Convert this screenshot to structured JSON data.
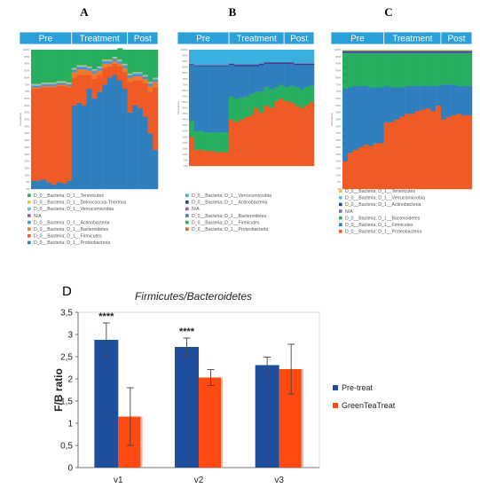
{
  "chart_data": [
    {
      "type": "bar",
      "panel_label": "A",
      "stacked": true,
      "groups": [
        "Pre",
        "Treatment",
        "Post"
      ],
      "group_sizes": [
        8,
        11,
        6
      ],
      "ylabel": "Abundance",
      "yticks": [
        "0%",
        "5%",
        "10%",
        "15%",
        "20%",
        "25%",
        "30%",
        "35%",
        "40%",
        "45%",
        "50%",
        "55%",
        "60%",
        "65%",
        "70%",
        "75%",
        "80%",
        "85%",
        "90%",
        "95%",
        "100%"
      ],
      "series": [
        {
          "name": "D_0__Bacteria; D_1__Proteobacteria",
          "color": "#2f7fbf",
          "values": [
            6,
            6,
            7,
            5,
            3,
            5,
            4,
            6,
            60,
            62,
            60,
            72,
            65,
            70,
            75,
            80,
            82,
            78,
            72,
            55,
            60,
            58,
            52,
            40,
            28
          ]
        },
        {
          "name": "D_0__Bacteria; D_1__Firmicutes",
          "color": "#f05a24",
          "values": [
            66,
            66,
            66,
            68,
            70,
            69,
            70,
            67,
            20,
            20,
            22,
            10,
            14,
            12,
            12,
            8,
            8,
            10,
            12,
            22,
            18,
            20,
            24,
            30,
            45
          ]
        },
        {
          "name": "D_0__Bacteria; D_1__Bacteroidetes",
          "color": "#f07a30",
          "values": [
            1,
            1,
            1,
            1,
            1,
            1,
            1,
            1,
            4,
            4,
            4,
            3,
            4,
            3,
            3,
            2,
            2,
            2,
            3,
            3,
            3,
            3,
            3,
            4,
            4
          ]
        },
        {
          "name": "D_0__Bacteria; D_1__Actinobacteria",
          "color": "#3a9ad9",
          "values": [
            0.5,
            0.5,
            0.5,
            0.5,
            0.5,
            0.5,
            0.5,
            0.5,
            1,
            1,
            1,
            1,
            1,
            1,
            1,
            1,
            1,
            1,
            1,
            1,
            1,
            1,
            1,
            1,
            1
          ]
        },
        {
          "name": "N/A",
          "color": "#8a63a8",
          "values": [
            0.5,
            0.5,
            0.5,
            0.5,
            0.5,
            0.5,
            0.5,
            0.5,
            0.5,
            0.5,
            0.5,
            0.5,
            0.5,
            0.5,
            0.5,
            0.5,
            0.5,
            0.5,
            0.5,
            0.5,
            0.5,
            0.5,
            0.5,
            0.5,
            0.5
          ]
        },
        {
          "name": "D_0__Bacteria; D_1__Verrucomicrobia",
          "color": "#5bc0de",
          "values": [
            1,
            1,
            1,
            1,
            1,
            1,
            1,
            1,
            1,
            1,
            1,
            1,
            1,
            1,
            1,
            1,
            1,
            1,
            1,
            1,
            1,
            1,
            1,
            1,
            1
          ]
        },
        {
          "name": "D_0__Bacteria; D_1__Deinococcus-Thermus",
          "color": "#f0c040",
          "values": [
            0.5,
            0.5,
            0.5,
            0.5,
            0.5,
            0.5,
            0.5,
            0.5,
            0.5,
            0.5,
            0.5,
            0.5,
            0.5,
            0.5,
            0.5,
            0.5,
            0.5,
            0.5,
            0.5,
            0.5,
            0.5,
            0.5,
            0.5,
            0.5,
            0.5
          ]
        },
        {
          "name": "D_0__Bacteria; D_1__Tenericutes",
          "color": "#27ae60",
          "values": [
            24.5,
            24.5,
            23.5,
            23.5,
            23.5,
            22.5,
            22.5,
            23.5,
            13,
            11,
            11,
            12,
            14,
            12,
            7,
            7,
            5,
            8,
            10,
            17,
            16,
            16,
            18,
            23,
            20
          ]
        }
      ],
      "legend_order": [
        "D_0__Bacteria; D_1__Tenericutes",
        "D_0__Bacteria; D_1__Deinococcus-Thermus",
        "D_0__Bacteria; D_1__Verrucomicrobia",
        "N/A",
        "D_0__Bacteria; D_1__Actinobacteria",
        "D_0__Bacteria; D_1__Bacteroidetes",
        "D_0__Bacteria; D_1__Firmicutes",
        "D_0__Bacteria; D_1__Proteobacteria"
      ]
    },
    {
      "type": "bar",
      "panel_label": "B",
      "stacked": true,
      "groups": [
        "Pre",
        "Treatment",
        "Post"
      ],
      "group_sizes": [
        8,
        11,
        6
      ],
      "ylabel": "Abundance",
      "yticks": [
        "0%",
        "5%",
        "10%",
        "15%",
        "20%",
        "25%",
        "30%",
        "35%",
        "40%",
        "45%",
        "50%",
        "55%",
        "60%",
        "65%",
        "70%",
        "75%",
        "80%",
        "85%",
        "90%",
        "95%",
        "100%"
      ],
      "series": [
        {
          "name": "D_0__Bacteria; D_1__Proteobacteria",
          "color": "#f05a24",
          "values": [
            25,
            14,
            14,
            13,
            13,
            12,
            12,
            12,
            40,
            38,
            40,
            42,
            44,
            50,
            46,
            52,
            50,
            56,
            58,
            56,
            55,
            52,
            50,
            52,
            55
          ]
        },
        {
          "name": "D_0__Bacteria; D_1__Firmicutes",
          "color": "#27ae60",
          "values": [
            14,
            16,
            16,
            16,
            16,
            17,
            17,
            17,
            20,
            20,
            19,
            18,
            18,
            14,
            18,
            16,
            16,
            12,
            12,
            12,
            14,
            16,
            16,
            16,
            14
          ]
        },
        {
          "name": "D_0__Bacteria; D_1__Bacteroidetes",
          "color": "#2f7fbf",
          "values": [
            48,
            56,
            56,
            57,
            57,
            57,
            57,
            57,
            27,
            28,
            27,
            26,
            24,
            22,
            23,
            20,
            22,
            20,
            18,
            20,
            19,
            19,
            21,
            19,
            18
          ]
        },
        {
          "name": "D_0__Bacteria; D_1__Actinobacteria",
          "color": "#2c3e8f",
          "values": [
            0.5,
            0.5,
            0.5,
            0.5,
            0.5,
            0.5,
            0.5,
            0.5,
            1,
            1,
            1,
            1,
            1,
            1,
            1,
            1,
            1,
            1,
            1,
            1,
            1,
            1,
            1,
            1,
            1
          ]
        },
        {
          "name": "N/A",
          "color": "#8a63a8",
          "values": [
            0.5,
            0.5,
            0.5,
            0.5,
            0.5,
            0.5,
            0.5,
            0.5,
            0.5,
            0.5,
            0.5,
            0.5,
            0.5,
            0.5,
            0.5,
            0.5,
            0.5,
            0.5,
            0.5,
            0.5,
            0.5,
            0.5,
            0.5,
            0.5,
            0.5
          ]
        },
        {
          "name": "D_0__Bacteria; D_1__Verrucomicrobia",
          "color": "#3ab0e0",
          "values": [
            12,
            13,
            13,
            13,
            13,
            13,
            13,
            13,
            11.5,
            12.5,
            12.5,
            12.5,
            12.5,
            12.5,
            11.5,
            10.5,
            10.5,
            10.5,
            10.5,
            10.5,
            10.5,
            11.5,
            11.5,
            11.5,
            11.5
          ]
        }
      ],
      "legend_order": [
        "D_0__Bacteria; D_1__Verrucomicrobia",
        "D_0__Bacteria; D_1__Actinobacteria",
        "N/A",
        "D_0__Bacteria; D_1__Bacteroidetes",
        "D_0__Bacteria; D_1__Firmicutes",
        "D_0__Bacteria; D_1__Proteobacteria"
      ]
    },
    {
      "type": "bar",
      "panel_label": "C",
      "stacked": true,
      "groups": [
        "Pre",
        "Treatment",
        "Post"
      ],
      "group_sizes": [
        8,
        11,
        6
      ],
      "ylabel": "Abundance",
      "yticks": [
        "0%",
        "5%",
        "10%",
        "15%",
        "20%",
        "25%",
        "30%",
        "35%",
        "40%",
        "45%",
        "50%",
        "55%",
        "60%",
        "65%",
        "70%",
        "75%",
        "80%",
        "85%",
        "90%",
        "95%",
        "100%"
      ],
      "series": [
        {
          "name": "D_0__Bacteria; D_1__Proteobacteria",
          "color": "#f05a24",
          "values": [
            20,
            26,
            28,
            30,
            32,
            31,
            33,
            33,
            48,
            48,
            50,
            52,
            54,
            54,
            56,
            57,
            58,
            56,
            60,
            50,
            52,
            53,
            54,
            53,
            53
          ]
        },
        {
          "name": "D_0__Bacteria; D_1__Firmicutes",
          "color": "#2f7fbf",
          "values": [
            52,
            47,
            46,
            44,
            42,
            42,
            40,
            40,
            26,
            25,
            23,
            21,
            20,
            20,
            18,
            17,
            16,
            18,
            14,
            25,
            23,
            22,
            20,
            21,
            21
          ]
        },
        {
          "name": "D_0__Bacteria; D_1__Bacteroidetes",
          "color": "#27ae60",
          "values": [
            25.5,
            24.5,
            23.5,
            23.5,
            23.5,
            24.5,
            24.5,
            24.5,
            23.5,
            24.5,
            24.5,
            24.5,
            23.5,
            23.5,
            23.5,
            23.5,
            23.5,
            23.5,
            23.5,
            22.5,
            22.5,
            22.5,
            23.5,
            23.5,
            23.5
          ]
        },
        {
          "name": "N/A",
          "color": "#8a63a8",
          "values": [
            0.5,
            0.5,
            0.5,
            0.5,
            0.5,
            0.5,
            0.5,
            0.5,
            0.5,
            0.5,
            0.5,
            0.5,
            0.5,
            0.5,
            0.5,
            0.5,
            0.5,
            0.5,
            0.5,
            0.5,
            0.5,
            0.5,
            0.5,
            0.5,
            0.5
          ]
        },
        {
          "name": "D_0__Bacteria; D_1__Actinobacteria",
          "color": "#2c3e8f",
          "values": [
            1,
            1,
            1,
            1,
            1,
            1,
            1,
            1,
            1,
            1,
            1,
            1,
            1,
            1,
            1,
            1,
            1,
            1,
            1,
            1,
            1,
            1,
            1,
            1,
            1
          ]
        },
        {
          "name": "D_0__Bacteria; D_1__Verrucomicrobia",
          "color": "#5bc0de",
          "values": [
            0.5,
            0.5,
            0.5,
            0.5,
            0.5,
            0.5,
            0.5,
            0.5,
            0.5,
            0.5,
            0.5,
            0.5,
            0.5,
            0.5,
            0.5,
            0.5,
            0.5,
            0.5,
            0.5,
            0.5,
            0.5,
            0.5,
            0.5,
            0.5,
            0.5
          ]
        },
        {
          "name": "D_0__Bacteria; D_1__Tenericutes",
          "color": "#f0c040",
          "values": [
            0.5,
            0.5,
            0.5,
            0.5,
            0.5,
            0.5,
            0.5,
            0.5,
            0.5,
            0.5,
            0.5,
            0.5,
            0.5,
            0.5,
            0.5,
            0.5,
            0.5,
            0.5,
            0.5,
            0.5,
            0.5,
            0.5,
            0.5,
            0.5,
            0.5
          ]
        }
      ],
      "legend_order": [
        "D_0__Bacteria; D_1__Tenericutes",
        "D_0__Bacteria; D_1__Verrucomicrobia",
        "D_0__Bacteria; D_1__Actinobacteria",
        "N/A",
        "D_0__Bacteria; D_1__Bacteroidetes",
        "D_0__Bacteria; D_1__Firmicutes",
        "D_0__Bacteria; D_1__Proteobacteria"
      ]
    },
    {
      "type": "bar",
      "panel_label": "D",
      "title": "Firmicutes/Bacteroidetes",
      "ylabel": "F/B ratio",
      "ylim": [
        0,
        3.5
      ],
      "yticks": [
        "0",
        "0,5",
        "1",
        "1,5",
        "2",
        "2,5",
        "3",
        "3,5"
      ],
      "categories": [
        "v1",
        "v2",
        "v3"
      ],
      "series": [
        {
          "name": "Pre-treat",
          "color": "#1f4e9c",
          "values": [
            2.88,
            2.72,
            2.31
          ],
          "err": [
            0.38,
            0.2,
            0.18
          ]
        },
        {
          "name": "GreenTeaTreat",
          "color": "#ff4a12",
          "values": [
            1.15,
            2.03,
            2.22
          ],
          "err": [
            0.65,
            0.18,
            0.56
          ]
        }
      ],
      "annotations": [
        "****",
        "****",
        ""
      ]
    }
  ]
}
